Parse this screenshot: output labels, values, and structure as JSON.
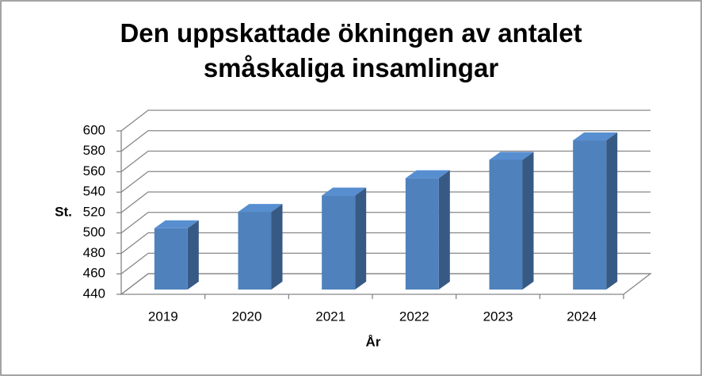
{
  "chart_data": {
    "type": "bar",
    "title": "Den uppskattade ökningen av antalet småskaliga insamlingar",
    "x_label": "År",
    "y_label": "St.",
    "categories": [
      "2019",
      "2020",
      "2021",
      "2022",
      "2023",
      "2024"
    ],
    "values": [
      500,
      516,
      532,
      549,
      567,
      586
    ],
    "color": "#4f81bd",
    "ylim": [
      440,
      600
    ],
    "yticks": [
      440,
      460,
      480,
      500,
      520,
      540,
      560,
      580,
      600
    ],
    "grid": true
  }
}
